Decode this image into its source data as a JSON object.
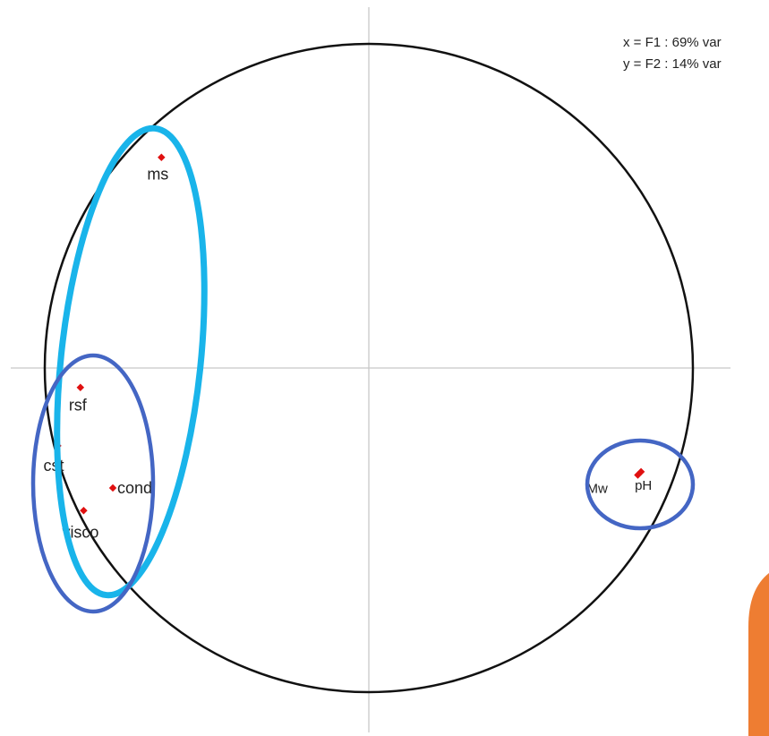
{
  "chart_data": {
    "type": "scatter",
    "title": "",
    "subtitle": "",
    "axis_info": [
      "x = F1 : 69% var",
      "y = F2 : 14% var"
    ],
    "xlim": [
      -1,
      1
    ],
    "ylim": [
      -1,
      1
    ],
    "correlation_circle": true,
    "grid": false,
    "legend_position": "top-right",
    "points": [
      {
        "label": "ms",
        "x": -0.64,
        "y": 0.65
      },
      {
        "label": "rsf",
        "x": -0.89,
        "y": -0.06
      },
      {
        "label": "cst",
        "x": -0.96,
        "y": -0.24
      },
      {
        "label": "cond",
        "x": -0.79,
        "y": -0.37
      },
      {
        "label": "visco",
        "x": -0.88,
        "y": -0.44
      },
      {
        "label": "Mw",
        "x": 0.83,
        "y": -0.33
      },
      {
        "label": "pH",
        "x": 0.84,
        "y": -0.32
      }
    ],
    "groupings": [
      {
        "members": [
          "ms",
          "rsf",
          "cst",
          "cond",
          "visco"
        ]
      },
      {
        "members": [
          "rsf",
          "cst",
          "cond",
          "visco"
        ]
      },
      {
        "members": [
          "Mw",
          "pH"
        ]
      }
    ],
    "colors": {
      "circle": "#111111",
      "axes": "#c8c8c8",
      "points": "#e01010",
      "text": "#222222",
      "group_light_blue": "#19b4ea",
      "group_dark_blue": "#4466c4",
      "corner_tab": "#ee7d32"
    }
  }
}
